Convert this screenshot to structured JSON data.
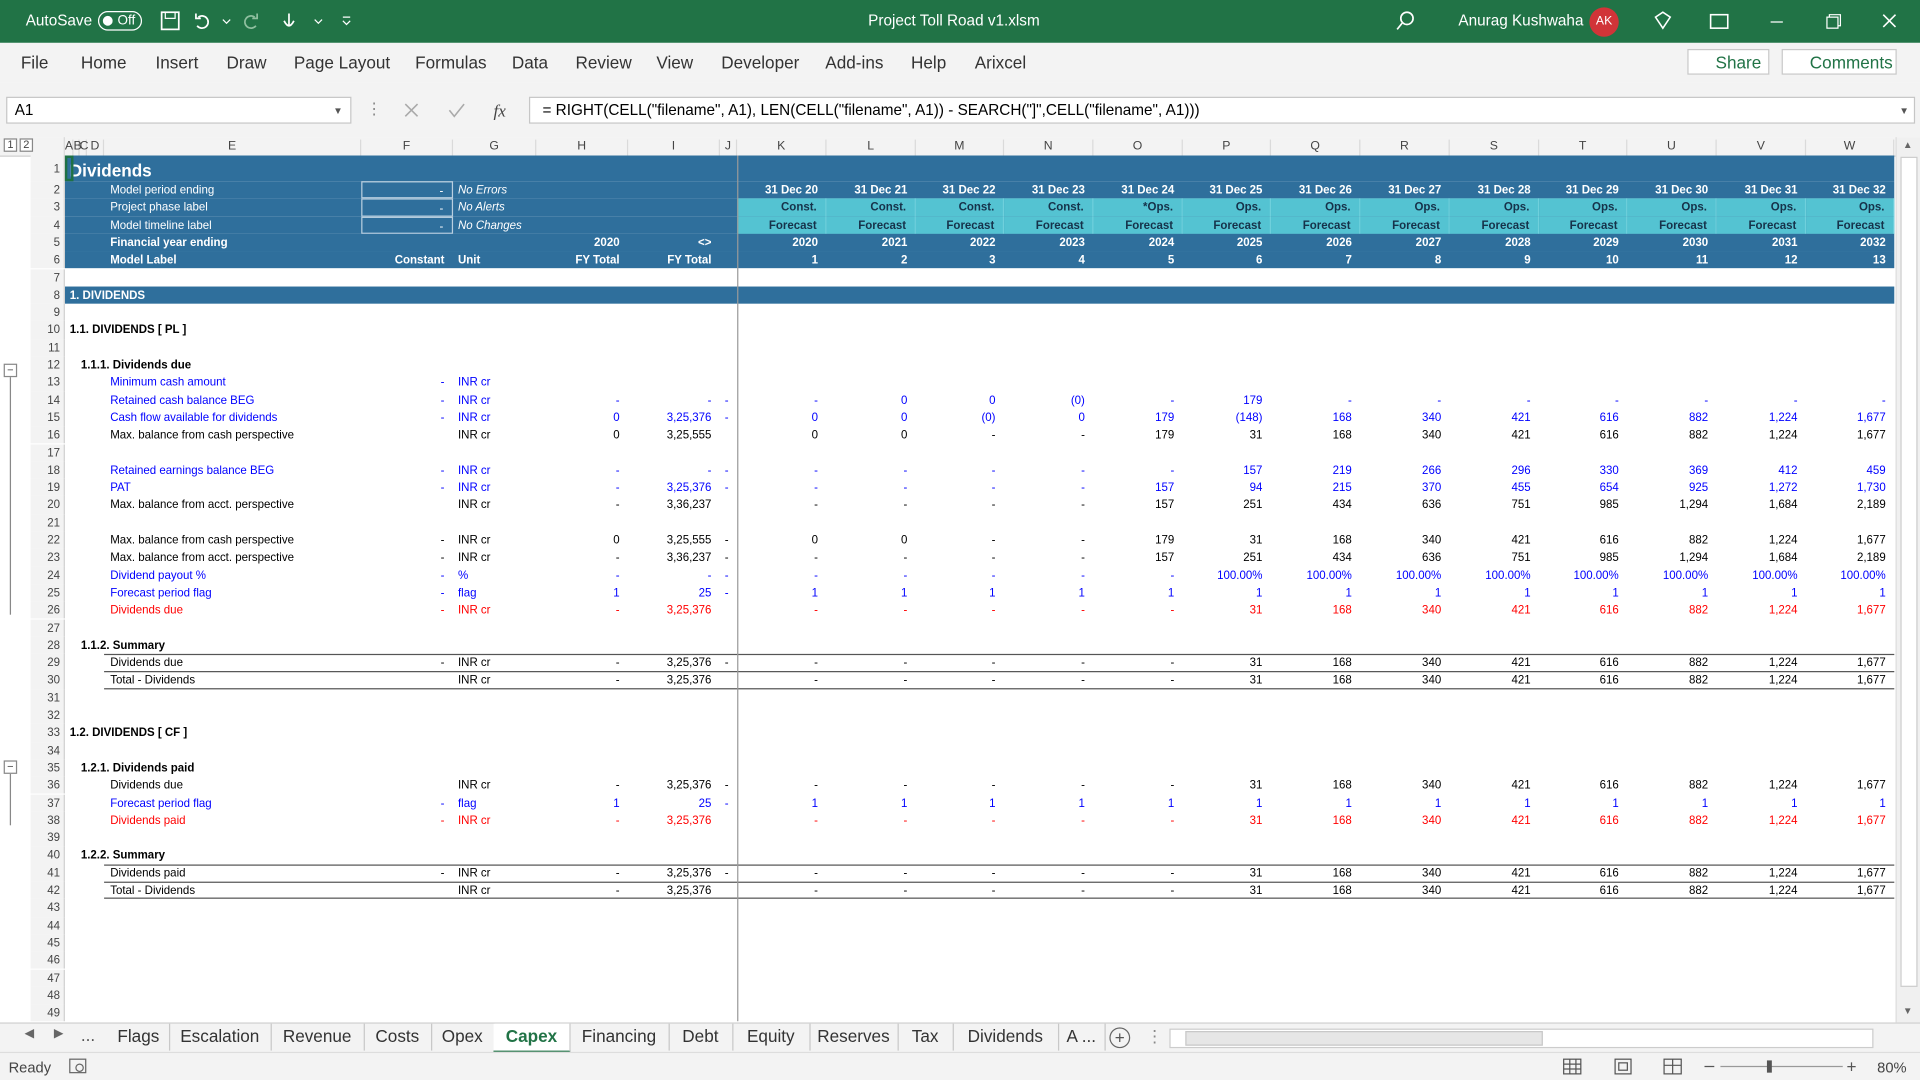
{
  "titlebar": {
    "autosave": "AutoSave",
    "toggle": "Off",
    "filename": "Project Toll Road v1.xlsm",
    "user": "Anurag Kushwaha",
    "initials": "AK"
  },
  "menu": [
    "File",
    "Home",
    "Insert",
    "Draw",
    "Page Layout",
    "Formulas",
    "Data",
    "Review",
    "View",
    "Developer",
    "Add-ins",
    "Help",
    "Arixcel"
  ],
  "ribbon_buttons": [
    "Share",
    "Comments"
  ],
  "formula_bar": {
    "name_box": "A1",
    "formula": "= RIGHT(CELL(\"filename\", A1), LEN(CELL(\"filename\", A1)) - SEARCH(\"]\",CELL(\"filename\", A1)))"
  },
  "outline_levels": [
    "1",
    "2"
  ],
  "columns": [
    "A",
    "B",
    "C",
    "D",
    "E",
    "F",
    "G",
    "H",
    "I",
    "J",
    "K",
    "L",
    "M",
    "N",
    "O",
    "P",
    "Q",
    "R",
    "S",
    "T",
    "U",
    "V",
    "W"
  ],
  "rows": [
    {
      "n": 1,
      "a": "Dividends"
    },
    {
      "n": 2,
      "e": "Model period ending",
      "f": "-",
      "g": "No Errors",
      "k": [
        "31 Dec 20",
        "31 Dec 21",
        "31 Dec 22",
        "31 Dec 23",
        "31 Dec 24",
        "31 Dec 25",
        "31 Dec 26",
        "31 Dec 27",
        "31 Dec 28",
        "31 Dec 29",
        "31 Dec 30",
        "31 Dec 31",
        "31 Dec 32"
      ]
    },
    {
      "n": 3,
      "e": "Project phase label",
      "f": "-",
      "g": "No Alerts",
      "k": [
        "Const.",
        "Const.",
        "Const.",
        "Const.",
        "*Ops.",
        "Ops.",
        "Ops.",
        "Ops.",
        "Ops.",
        "Ops.",
        "Ops.",
        "Ops.",
        "Ops."
      ]
    },
    {
      "n": 4,
      "e": "Model timeline label",
      "f": "-",
      "g": "No Changes",
      "k": [
        "Forecast",
        "Forecast",
        "Forecast",
        "Forecast",
        "Forecast",
        "Forecast",
        "Forecast",
        "Forecast",
        "Forecast",
        "Forecast",
        "Forecast",
        "Forecast",
        "Forecast"
      ]
    },
    {
      "n": 5,
      "e": "Financial year ending",
      "h": "2020",
      "i": "<>",
      "k": [
        "2020",
        "2021",
        "2022",
        "2023",
        "2024",
        "2025",
        "2026",
        "2027",
        "2028",
        "2029",
        "2030",
        "2031",
        "2032"
      ]
    },
    {
      "n": 6,
      "e": "Model Label",
      "f": "Constant",
      "g": "Unit",
      "h": "FY Total",
      "i": "FY Total",
      "k": [
        "1",
        "2",
        "3",
        "4",
        "5",
        "6",
        "7",
        "8",
        "9",
        "10",
        "11",
        "12",
        "13"
      ]
    },
    {
      "n": 7
    },
    {
      "n": 8,
      "a": "1. DIVIDENDS"
    },
    {
      "n": 9
    },
    {
      "n": 10,
      "a": "1.1. DIVIDENDS [ PL ]"
    },
    {
      "n": 11
    },
    {
      "n": 12,
      "b": "1.1.1. Dividends due"
    },
    {
      "n": 13,
      "e": "Minimum cash amount",
      "f": "-",
      "g": "INR cr",
      "color": "#0000ff"
    },
    {
      "n": 14,
      "e": "Retained cash balance BEG",
      "f": "-",
      "g": "INR cr",
      "h": "-",
      "i": "-",
      "j": "-",
      "color": "#0000ff",
      "k": [
        "-",
        "0",
        "0",
        "(0)",
        "-",
        "179",
        "-",
        "-",
        "-",
        "-",
        "-",
        "-",
        "-"
      ]
    },
    {
      "n": 15,
      "e": "Cash flow available for dividends",
      "f": "-",
      "g": "INR cr",
      "h": "0",
      "i": "3,25,376",
      "j": "-",
      "color": "#0000ff",
      "k": [
        "0",
        "0",
        "(0)",
        "0",
        "179",
        "(148)",
        "168",
        "340",
        "421",
        "616",
        "882",
        "1,224",
        "1,677"
      ]
    },
    {
      "n": 16,
      "e": "Max. balance from cash perspective",
      "g": "INR cr",
      "h": "0",
      "i": "3,25,555",
      "k": [
        "0",
        "0",
        "-",
        "-",
        "179",
        "31",
        "168",
        "340",
        "421",
        "616",
        "882",
        "1,224",
        "1,677"
      ]
    },
    {
      "n": 17
    },
    {
      "n": 18,
      "e": "Retained earnings balance BEG",
      "f": "-",
      "g": "INR cr",
      "h": "-",
      "i": "-",
      "j": "-",
      "color": "#0000ff",
      "k": [
        "-",
        "-",
        "-",
        "-",
        "-",
        "157",
        "219",
        "266",
        "296",
        "330",
        "369",
        "412",
        "459"
      ]
    },
    {
      "n": 19,
      "e": "PAT",
      "f": "-",
      "g": "INR cr",
      "h": "-",
      "i": "3,25,376",
      "j": "-",
      "color": "#0000ff",
      "k": [
        "-",
        "-",
        "-",
        "-",
        "157",
        "94",
        "215",
        "370",
        "455",
        "654",
        "925",
        "1,272",
        "1,730"
      ]
    },
    {
      "n": 20,
      "e": "Max. balance from acct. perspective",
      "g": "INR cr",
      "h": "-",
      "i": "3,36,237",
      "k": [
        "-",
        "-",
        "-",
        "-",
        "157",
        "251",
        "434",
        "636",
        "751",
        "985",
        "1,294",
        "1,684",
        "2,189"
      ]
    },
    {
      "n": 21
    },
    {
      "n": 22,
      "e": "Max. balance from cash perspective",
      "f": "-",
      "g": "INR cr",
      "h": "0",
      "i": "3,25,555",
      "j": "-",
      "k": [
        "0",
        "0",
        "-",
        "-",
        "179",
        "31",
        "168",
        "340",
        "421",
        "616",
        "882",
        "1,224",
        "1,677"
      ]
    },
    {
      "n": 23,
      "e": "Max. balance from acct. perspective",
      "f": "-",
      "g": "INR cr",
      "h": "-",
      "i": "3,36,237",
      "j": "-",
      "k": [
        "-",
        "-",
        "-",
        "-",
        "157",
        "251",
        "434",
        "636",
        "751",
        "985",
        "1,294",
        "1,684",
        "2,189"
      ]
    },
    {
      "n": 24,
      "e": "Dividend payout %",
      "f": "-",
      "g": "%",
      "h": "-",
      "i": "-",
      "j": "-",
      "color": "#0000ff",
      "k": [
        "-",
        "-",
        "-",
        "-",
        "-",
        "100.00%",
        "100.00%",
        "100.00%",
        "100.00%",
        "100.00%",
        "100.00%",
        "100.00%",
        "100.00%"
      ]
    },
    {
      "n": 25,
      "e": "Forecast period flag",
      "f": "-",
      "g": "flag",
      "h": "1",
      "i": "25",
      "j": "-",
      "color": "#0000ff",
      "k": [
        "1",
        "1",
        "1",
        "1",
        "1",
        "1",
        "1",
        "1",
        "1",
        "1",
        "1",
        "1",
        "1"
      ]
    },
    {
      "n": 26,
      "e": "Dividends due",
      "f": "-",
      "g": "INR cr",
      "h": "-",
      "i": "3,25,376",
      "color": "#ff0000",
      "k": [
        "-",
        "-",
        "-",
        "-",
        "-",
        "31",
        "168",
        "340",
        "421",
        "616",
        "882",
        "1,224",
        "1,677"
      ]
    },
    {
      "n": 27
    },
    {
      "n": 28,
      "b": "1.1.2. Summary"
    },
    {
      "n": 29,
      "e": "Dividends due",
      "f": "-",
      "g": "INR cr",
      "h": "-",
      "i": "3,25,376",
      "j": "-",
      "k": [
        "-",
        "-",
        "-",
        "-",
        "-",
        "31",
        "168",
        "340",
        "421",
        "616",
        "882",
        "1,224",
        "1,677"
      ]
    },
    {
      "n": 30,
      "e": "Total - Dividends",
      "g": "INR cr",
      "h": "-",
      "i": "3,25,376",
      "k": [
        "-",
        "-",
        "-",
        "-",
        "-",
        "31",
        "168",
        "340",
        "421",
        "616",
        "882",
        "1,224",
        "1,677"
      ]
    },
    {
      "n": 31
    },
    {
      "n": 32
    },
    {
      "n": 33,
      "a": "1.2. DIVIDENDS [ CF ]"
    },
    {
      "n": 34
    },
    {
      "n": 35,
      "b": "1.2.1. Dividends paid"
    },
    {
      "n": 36,
      "e": "Dividends due",
      "g": "INR cr",
      "h": "-",
      "i": "3,25,376",
      "j": "-",
      "k": [
        "-",
        "-",
        "-",
        "-",
        "-",
        "31",
        "168",
        "340",
        "421",
        "616",
        "882",
        "1,224",
        "1,677"
      ]
    },
    {
      "n": 37,
      "e": "Forecast period flag",
      "f": "-",
      "g": "flag",
      "h": "1",
      "i": "25",
      "j": "-",
      "color": "#0000ff",
      "k": [
        "1",
        "1",
        "1",
        "1",
        "1",
        "1",
        "1",
        "1",
        "1",
        "1",
        "1",
        "1",
        "1"
      ]
    },
    {
      "n": 38,
      "e": "Dividends paid",
      "f": "-",
      "g": "INR cr",
      "h": "-",
      "i": "3,25,376",
      "color": "#ff0000",
      "k": [
        "-",
        "-",
        "-",
        "-",
        "-",
        "31",
        "168",
        "340",
        "421",
        "616",
        "882",
        "1,224",
        "1,677"
      ]
    },
    {
      "n": 39
    },
    {
      "n": 40,
      "b": "1.2.2. Summary"
    },
    {
      "n": 41,
      "e": "Dividends paid",
      "f": "-",
      "g": "INR cr",
      "h": "-",
      "i": "3,25,376",
      "j": "-",
      "k": [
        "-",
        "-",
        "-",
        "-",
        "-",
        "31",
        "168",
        "340",
        "421",
        "616",
        "882",
        "1,224",
        "1,677"
      ]
    },
    {
      "n": 42,
      "e": "Total - Dividends",
      "g": "INR cr",
      "h": "-",
      "i": "3,25,376",
      "k": [
        "-",
        "-",
        "-",
        "-",
        "-",
        "31",
        "168",
        "340",
        "421",
        "616",
        "882",
        "1,224",
        "1,677"
      ]
    },
    {
      "n": 43
    },
    {
      "n": 44
    },
    {
      "n": 45
    },
    {
      "n": 46
    },
    {
      "n": 47
    },
    {
      "n": 48
    },
    {
      "n": 49
    }
  ],
  "sheet_tabs": [
    "Flags",
    "Escalation",
    "Revenue",
    "Costs",
    "Opex",
    "Capex",
    "Financing",
    "Debt",
    "Equity",
    "Reserves",
    "Tax",
    "Dividends",
    "A ..."
  ],
  "status": {
    "mode": "Ready",
    "zoom": "80%"
  }
}
